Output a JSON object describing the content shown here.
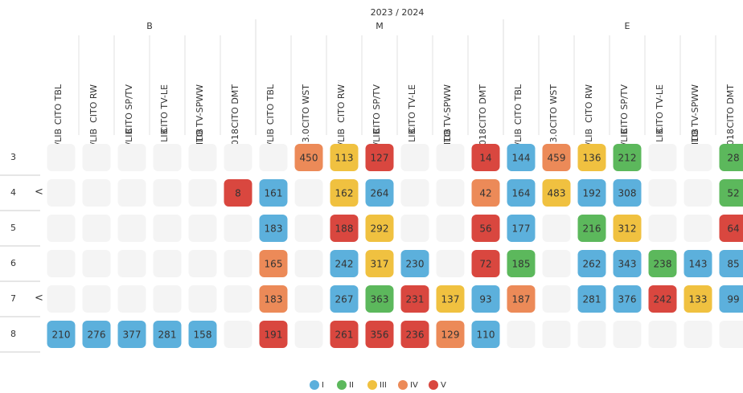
{
  "header": {
    "title": "2023 / 2024"
  },
  "groups": [
    {
      "label": "B",
      "columns": [
        {
          "name": "CITO TBL",
          "version": "3.0/LIB"
        },
        {
          "name": "CITO RW",
          "version": "3.0/LIB"
        },
        {
          "name": "CITO SP/TV",
          "version": "3.0/LIB"
        },
        {
          "name": "CITO TV-LE",
          "version": "LIB"
        },
        {
          "name": "CITO TV-SPWW",
          "version": "LIB"
        },
        {
          "name": "CITO DMT",
          "version": "2018"
        }
      ]
    },
    {
      "label": "M",
      "columns": [
        {
          "name": "CITO TBL",
          "version": "3.0/LIB"
        },
        {
          "name": "CITO WST",
          "version": "3.0"
        },
        {
          "name": "CITO RW",
          "version": "3.0/LIB"
        },
        {
          "name": "CITO SP/TV",
          "version": "3.0/LIB"
        },
        {
          "name": "CITO TV-LE",
          "version": "LIB"
        },
        {
          "name": "CITO TV-SPWW",
          "version": "LIB"
        },
        {
          "name": "CITO DMT",
          "version": "2018"
        }
      ]
    },
    {
      "label": "E",
      "columns": [
        {
          "name": "CITO TBL",
          "version": "3.0/LIB"
        },
        {
          "name": "CITO WST",
          "version": "3.0"
        },
        {
          "name": "CITO RW",
          "version": "3.0/LIB"
        },
        {
          "name": "CITO SP/TV",
          "version": "3.0/LIB"
        },
        {
          "name": "CITO TV-LE",
          "version": "LIB"
        },
        {
          "name": "CITO TV-SPWW",
          "version": "LIB"
        },
        {
          "name": "CITO DMT",
          "version": "2018"
        }
      ]
    }
  ],
  "rows": [
    {
      "label": "3",
      "cells": [
        null,
        null,
        null,
        null,
        null,
        null,
        null,
        {
          "value": 450,
          "level": "IV"
        },
        {
          "value": 113,
          "level": "III"
        },
        {
          "value": 127,
          "level": "V"
        },
        null,
        null,
        {
          "value": 14,
          "level": "V"
        },
        {
          "value": 144,
          "level": "I"
        },
        {
          "value": 459,
          "level": "IV"
        },
        {
          "value": 136,
          "level": "III"
        },
        {
          "value": 212,
          "level": "II"
        },
        null,
        null,
        {
          "value": 28,
          "level": "II"
        }
      ]
    },
    {
      "label": "4",
      "toggle": "<",
      "cells": [
        null,
        null,
        null,
        null,
        null,
        {
          "value": 8,
          "level": "V"
        },
        {
          "value": 161,
          "level": "I"
        },
        null,
        {
          "value": 162,
          "level": "III"
        },
        {
          "value": 264,
          "level": "I"
        },
        null,
        null,
        {
          "value": 42,
          "level": "IV"
        },
        {
          "value": 164,
          "level": "I"
        },
        {
          "value": 483,
          "level": "III"
        },
        {
          "value": 192,
          "level": "I"
        },
        {
          "value": 308,
          "level": "I"
        },
        null,
        null,
        {
          "value": 52,
          "level": "II"
        }
      ]
    },
    {
      "label": "5",
      "cells": [
        null,
        null,
        null,
        null,
        null,
        null,
        {
          "value": 183,
          "level": "I"
        },
        null,
        {
          "value": 188,
          "level": "V"
        },
        {
          "value": 292,
          "level": "III"
        },
        null,
        null,
        {
          "value": 56,
          "level": "V"
        },
        {
          "value": 177,
          "level": "I"
        },
        null,
        {
          "value": 216,
          "level": "II"
        },
        {
          "value": 312,
          "level": "III"
        },
        null,
        null,
        {
          "value": 64,
          "level": "V"
        }
      ]
    },
    {
      "label": "6",
      "cells": [
        null,
        null,
        null,
        null,
        null,
        null,
        {
          "value": 165,
          "level": "IV"
        },
        null,
        {
          "value": 242,
          "level": "I"
        },
        {
          "value": 317,
          "level": "III"
        },
        {
          "value": 230,
          "level": "I"
        },
        null,
        {
          "value": 72,
          "level": "V"
        },
        {
          "value": 185,
          "level": "II"
        },
        null,
        {
          "value": 262,
          "level": "I"
        },
        {
          "value": 343,
          "level": "I"
        },
        {
          "value": 238,
          "level": "II"
        },
        {
          "value": 143,
          "level": "I"
        },
        {
          "value": 85,
          "level": "I"
        }
      ]
    },
    {
      "label": "7",
      "toggle": "<",
      "cells": [
        null,
        null,
        null,
        null,
        null,
        null,
        {
          "value": 183,
          "level": "IV"
        },
        null,
        {
          "value": 267,
          "level": "I"
        },
        {
          "value": 363,
          "level": "II"
        },
        {
          "value": 231,
          "level": "V"
        },
        {
          "value": 137,
          "level": "III"
        },
        {
          "value": 93,
          "level": "I"
        },
        {
          "value": 187,
          "level": "IV"
        },
        null,
        {
          "value": 281,
          "level": "I"
        },
        {
          "value": 376,
          "level": "I"
        },
        {
          "value": 242,
          "level": "V"
        },
        {
          "value": 133,
          "level": "III"
        },
        {
          "value": 99,
          "level": "I"
        }
      ]
    },
    {
      "label": "8",
      "cells": [
        {
          "value": 210,
          "level": "I"
        },
        {
          "value": 276,
          "level": "I"
        },
        {
          "value": 377,
          "level": "I"
        },
        {
          "value": 281,
          "level": "I"
        },
        {
          "value": 158,
          "level": "I"
        },
        null,
        {
          "value": 191,
          "level": "V"
        },
        null,
        {
          "value": 261,
          "level": "V"
        },
        {
          "value": 356,
          "level": "V"
        },
        {
          "value": 236,
          "level": "V"
        },
        {
          "value": 129,
          "level": "IV"
        },
        {
          "value": 110,
          "level": "I"
        },
        null,
        null,
        null,
        null,
        null,
        null,
        null
      ]
    }
  ],
  "legend": [
    {
      "label": "I",
      "color": "#5cb0dc"
    },
    {
      "label": "II",
      "color": "#5cb85c"
    },
    {
      "label": "III",
      "color": "#f0c140"
    },
    {
      "label": "IV",
      "color": "#ec8a58"
    },
    {
      "label": "V",
      "color": "#d9473f"
    }
  ]
}
